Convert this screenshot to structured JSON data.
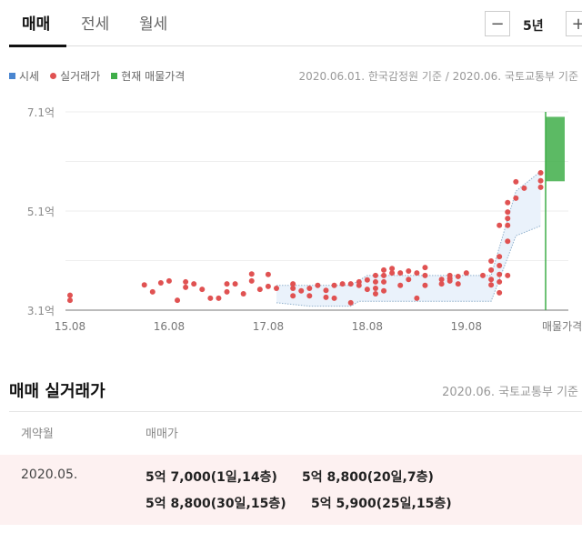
{
  "tabs": [
    {
      "label": "매매",
      "active": true
    },
    {
      "label": "전세",
      "active": false
    },
    {
      "label": "월세",
      "active": false
    }
  ],
  "period": {
    "minus_icon": "minus-icon",
    "value": "5년",
    "plus_icon": "plus-icon"
  },
  "legend": [
    {
      "label": "시세",
      "color": "#4a86d0"
    },
    {
      "label": "실거래가",
      "color": "#e05252"
    },
    {
      "label": "현재 매물가격",
      "color": "#3fae49"
    }
  ],
  "source_note": "2020.06.01. 한국감정원 기준 / 2020.06. 국토교통부 기준",
  "chart_data": {
    "type": "scatter",
    "y_tick_labels": [
      "7.1억",
      "5.1억",
      "3.1억"
    ],
    "y_ticks": [
      7.1,
      5.1,
      3.1
    ],
    "ylim": [
      3.1,
      7.1
    ],
    "y_unit": "억",
    "x_tick_labels": [
      "15.08",
      "16.08",
      "17.08",
      "18.08",
      "19.08",
      "매물가격"
    ],
    "x_ticks": [
      "2015-08",
      "2016-08",
      "2017-08",
      "2018-08",
      "2019-08"
    ],
    "xlim": [
      "2015-08",
      "2020-06"
    ],
    "grid": true,
    "series": [
      {
        "name": "실거래가",
        "color": "#e05252",
        "points": [
          [
            "2015-08",
            3.4
          ],
          [
            "2015-08",
            3.3
          ],
          [
            "2016-05",
            3.61
          ],
          [
            "2016-06",
            3.47
          ],
          [
            "2016-07",
            3.65
          ],
          [
            "2016-08",
            3.69
          ],
          [
            "2016-09",
            3.3
          ],
          [
            "2016-10",
            3.67
          ],
          [
            "2016-10",
            3.56
          ],
          [
            "2016-11",
            3.63
          ],
          [
            "2016-12",
            3.52
          ],
          [
            "2017-01",
            3.34
          ],
          [
            "2017-02",
            3.34
          ],
          [
            "2017-03",
            3.63
          ],
          [
            "2017-03",
            3.47
          ],
          [
            "2017-04",
            3.63
          ],
          [
            "2017-05",
            3.43
          ],
          [
            "2017-06",
            3.69
          ],
          [
            "2017-06",
            3.83
          ],
          [
            "2017-07",
            3.52
          ],
          [
            "2017-08",
            3.82
          ],
          [
            "2017-08",
            3.58
          ],
          [
            "2017-09",
            3.54
          ],
          [
            "2017-11",
            3.63
          ],
          [
            "2017-11",
            3.54
          ],
          [
            "2017-11",
            3.39
          ],
          [
            "2017-12",
            3.49
          ],
          [
            "2018-01",
            3.54
          ],
          [
            "2018-01",
            3.39
          ],
          [
            "2018-02",
            3.6
          ],
          [
            "2018-03",
            3.5
          ],
          [
            "2018-03",
            3.36
          ],
          [
            "2018-04",
            3.6
          ],
          [
            "2018-04",
            3.34
          ],
          [
            "2018-05",
            3.63
          ],
          [
            "2018-06",
            3.63
          ],
          [
            "2018-06",
            3.25
          ],
          [
            "2018-07",
            3.67
          ],
          [
            "2018-07",
            3.6
          ],
          [
            "2018-08",
            3.71
          ],
          [
            "2018-08",
            3.52
          ],
          [
            "2018-09",
            3.8
          ],
          [
            "2018-09",
            3.67
          ],
          [
            "2018-09",
            3.54
          ],
          [
            "2018-09",
            3.43
          ],
          [
            "2018-10",
            3.91
          ],
          [
            "2018-10",
            3.8
          ],
          [
            "2018-10",
            3.67
          ],
          [
            "2018-10",
            3.49
          ],
          [
            "2018-11",
            3.94
          ],
          [
            "2018-11",
            3.85
          ],
          [
            "2018-12",
            3.85
          ],
          [
            "2018-12",
            3.6
          ],
          [
            "2019-01",
            3.89
          ],
          [
            "2019-01",
            3.72
          ],
          [
            "2019-02",
            3.85
          ],
          [
            "2019-02",
            3.34
          ],
          [
            "2019-03",
            3.96
          ],
          [
            "2019-03",
            3.8
          ],
          [
            "2019-03",
            3.6
          ],
          [
            "2019-05",
            3.72
          ],
          [
            "2019-05",
            3.63
          ],
          [
            "2019-06",
            3.74
          ],
          [
            "2019-06",
            3.8
          ],
          [
            "2019-06",
            3.69
          ],
          [
            "2019-07",
            3.78
          ],
          [
            "2019-07",
            3.63
          ],
          [
            "2019-08",
            3.85
          ],
          [
            "2019-10",
            3.8
          ],
          [
            "2019-11",
            4.09
          ],
          [
            "2019-11",
            3.91
          ],
          [
            "2019-11",
            3.72
          ],
          [
            "2019-11",
            3.61
          ],
          [
            "2019-12",
            4.18
          ],
          [
            "2019-12",
            4.0
          ],
          [
            "2019-12",
            3.82
          ],
          [
            "2019-12",
            3.67
          ],
          [
            "2019-12",
            3.45
          ],
          [
            "2019-12",
            4.81
          ],
          [
            "2020-01",
            5.27
          ],
          [
            "2020-01",
            5.08
          ],
          [
            "2020-01",
            4.95
          ],
          [
            "2020-01",
            4.81
          ],
          [
            "2020-01",
            4.49
          ],
          [
            "2020-01",
            3.8
          ],
          [
            "2020-02",
            5.69
          ],
          [
            "2020-02",
            5.36
          ],
          [
            "2020-03",
            5.56
          ],
          [
            "2020-05",
            5.87
          ],
          [
            "2020-05",
            5.71
          ],
          [
            "2020-05",
            5.58
          ]
        ]
      },
      {
        "name": "시세",
        "color": "#4a86d0",
        "upper": [
          [
            "2017-09",
            3.6
          ],
          [
            "2018-06",
            3.6
          ],
          [
            "2018-08",
            3.8
          ],
          [
            "2019-11",
            3.8
          ],
          [
            "2020-02",
            5.5
          ],
          [
            "2020-05",
            5.9
          ]
        ],
        "lower": [
          [
            "2017-09",
            3.25
          ],
          [
            "2018-01",
            3.18
          ],
          [
            "2018-06",
            3.18
          ],
          [
            "2018-07",
            3.28
          ],
          [
            "2019-11",
            3.28
          ],
          [
            "2020-02",
            4.6
          ],
          [
            "2020-05",
            4.8
          ]
        ]
      },
      {
        "name": "현재 매물가격",
        "color": "#3fae49",
        "range": [
          5.7,
          7.0
        ]
      }
    ]
  },
  "deals": {
    "title": "매매 실거래가",
    "source": "2020.06. 국토교통부 기준",
    "headers": [
      "계약월",
      "매매가"
    ],
    "rows": [
      {
        "month": "2020.05.",
        "items": [
          "5억 7,000(1일,14층)",
          "5억 8,800(20일,7층)",
          "5억 8,800(30일,15층)",
          "5억 5,900(25일,15층)"
        ]
      }
    ]
  }
}
